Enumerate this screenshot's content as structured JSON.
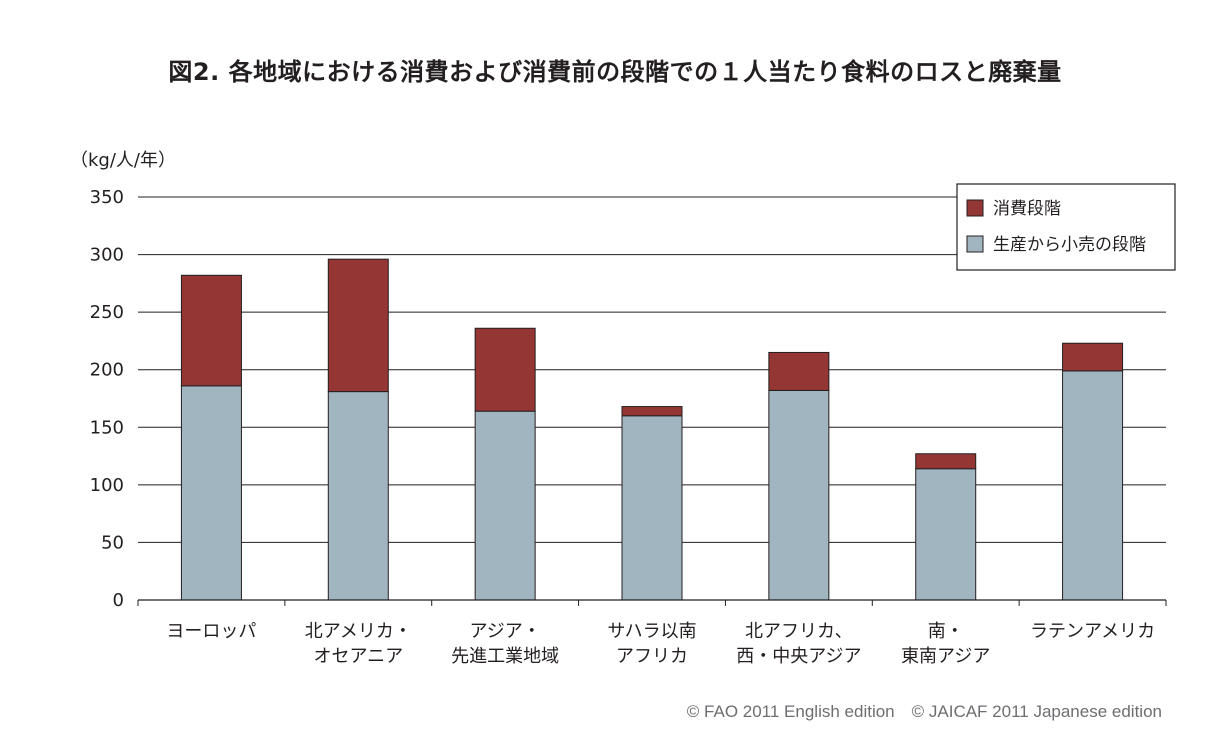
{
  "chart_data": {
    "type": "bar",
    "stacked": true,
    "title": "図2. 各地域における消費および消費前の段階での１人当たり食料のロスと廃棄量",
    "ylabel": "（kg/人/年）",
    "xlabel": "",
    "ylim": [
      0,
      350
    ],
    "yticks": [
      0,
      50,
      100,
      150,
      200,
      250,
      300,
      350
    ],
    "grid": true,
    "legend_position": "top-right",
    "categories": [
      [
        "ヨーロッパ"
      ],
      [
        "北アメリカ・",
        "オセアニア"
      ],
      [
        "アジア・",
        "先進工業地域"
      ],
      [
        "サハラ以南",
        "アフリカ"
      ],
      [
        "北アフリカ、",
        "西・中央アジア"
      ],
      [
        "南・",
        "東南アジア"
      ],
      [
        "ラテンアメリカ"
      ]
    ],
    "series": [
      {
        "name": "生産から小売の段階",
        "color": "#a1b5c0",
        "values": [
          186,
          181,
          164,
          160,
          182,
          114,
          199
        ]
      },
      {
        "name": "消費段階",
        "color": "#943634",
        "values": [
          96,
          115,
          72,
          8,
          33,
          13,
          24
        ]
      }
    ],
    "legend_order": [
      "消費段階",
      "生産から小売の段階"
    ]
  },
  "credit": "© FAO 2011 English edition　© JAICAF 2011 Japanese edition"
}
